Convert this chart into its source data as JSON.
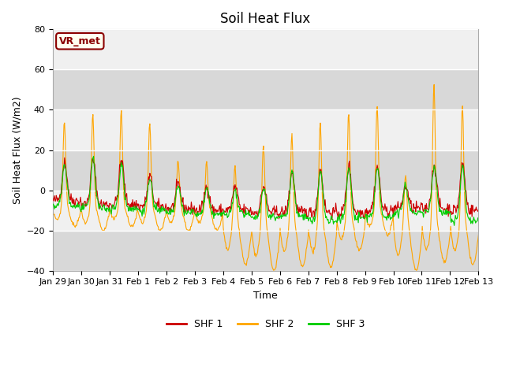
{
  "title": "Soil Heat Flux",
  "ylabel": "Soil Heat Flux (W/m2)",
  "xlabel": "Time",
  "ylim": [
    -40,
    80
  ],
  "yticks": [
    -40,
    -20,
    0,
    20,
    40,
    60,
    80
  ],
  "colors": {
    "SHF 1": "#cc0000",
    "SHF 2": "#ffa500",
    "SHF 3": "#00cc00"
  },
  "legend_labels": [
    "SHF 1",
    "SHF 2",
    "SHF 3"
  ],
  "xtick_labels": [
    "Jan 29",
    "Jan 30",
    "Jan 31",
    "Feb 1",
    "Feb 2",
    "Feb 3",
    "Feb 4",
    "Feb 5",
    "Feb 6",
    "Feb 7",
    "Feb 8",
    "Feb 9",
    "Feb 10",
    "Feb 11",
    "Feb 12",
    "Feb 13"
  ],
  "annotation_text": "VR_met",
  "annotation_color": "#8B0000",
  "annotation_bg": "#fffff0",
  "band_colors": [
    "#d8d8d8",
    "#f0f0f0"
  ],
  "fig_bg": "#ffffff",
  "title_fontsize": 12,
  "axis_fontsize": 9,
  "tick_fontsize": 8,
  "n_days": 15,
  "pts_per_day": 48
}
